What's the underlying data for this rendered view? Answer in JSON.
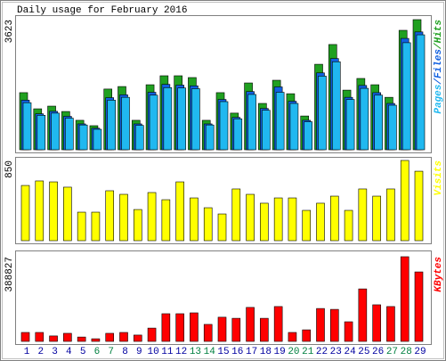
{
  "chart_data": [
    {
      "type": "bar",
      "title": "Daily usage for February 2016",
      "ylim": [
        0,
        3623
      ],
      "legend_separator": "/",
      "series": [
        {
          "name": "Pages",
          "color": "#20b8f0",
          "values": [
            1310,
            960,
            1020,
            880,
            690,
            570,
            1380,
            1460,
            680,
            1520,
            1730,
            1720,
            1700,
            690,
            1340,
            860,
            1540,
            1100,
            1600,
            1290,
            780,
            2050,
            2450,
            1400,
            1710,
            1520,
            1240,
            2980,
            3200
          ]
        },
        {
          "name": "Files",
          "color": "#1060e0",
          "values": [
            1380,
            1000,
            1070,
            930,
            720,
            600,
            1450,
            1530,
            720,
            1600,
            1820,
            1800,
            1780,
            720,
            1400,
            900,
            1620,
            1150,
            1750,
            1350,
            820,
            2140,
            2540,
            1460,
            1790,
            1590,
            1290,
            3100,
            3280
          ]
        },
        {
          "name": "Hits",
          "color": "#20a020",
          "values": [
            1590,
            1140,
            1215,
            1065,
            820,
            670,
            1690,
            1760,
            820,
            1810,
            2060,
            2060,
            2010,
            820,
            1590,
            1020,
            1860,
            1290,
            1935,
            1560,
            940,
            2380,
            2930,
            1660,
            1985,
            1810,
            1460,
            3325,
            3623
          ]
        }
      ]
    },
    {
      "type": "bar",
      "ylim": [
        0,
        850
      ],
      "series": [
        {
          "name": "Visits",
          "color": "#ffff00",
          "values": [
            585,
            633,
            623,
            567,
            302,
            302,
            529,
            491,
            330,
            510,
            434,
            623,
            453,
            349,
            283,
            548,
            491,
            397,
            453,
            453,
            321,
            397,
            472,
            321,
            548,
            472,
            548,
            850,
            736
          ]
        }
      ]
    },
    {
      "type": "bar",
      "ylim": [
        0,
        388827
      ],
      "categories": [
        "1",
        "2",
        "3",
        "4",
        "5",
        "6",
        "7",
        "8",
        "9",
        "10",
        "11",
        "12",
        "13",
        "14",
        "15",
        "16",
        "17",
        "18",
        "19",
        "20",
        "21",
        "22",
        "23",
        "24",
        "25",
        "26",
        "27",
        "28",
        "29"
      ],
      "category_colors": [
        "#0000a0",
        "#0000a0",
        "#0000a0",
        "#0000a0",
        "#0000a0",
        "#008040",
        "#008040",
        "#0000a0",
        "#0000a0",
        "#0000a0",
        "#0000a0",
        "#0000a0",
        "#008040",
        "#008040",
        "#0000a0",
        "#0000a0",
        "#0000a0",
        "#0000a0",
        "#0000a0",
        "#008040",
        "#008040",
        "#0000a0",
        "#0000a0",
        "#0000a0",
        "#0000a0",
        "#0000a0",
        "#008040",
        "#008040",
        "#0000a0"
      ],
      "series": [
        {
          "name": "KBytes",
          "color": "#ff0000",
          "values": [
            41000,
            41000,
            25000,
            37000,
            20000,
            12000,
            37000,
            41000,
            29000,
            61000,
            127000,
            127000,
            131000,
            78000,
            111000,
            106000,
            156000,
            106000,
            160000,
            41000,
            53000,
            151000,
            147000,
            90000,
            241000,
            168000,
            160000,
            388827,
            319000
          ]
        }
      ]
    }
  ]
}
